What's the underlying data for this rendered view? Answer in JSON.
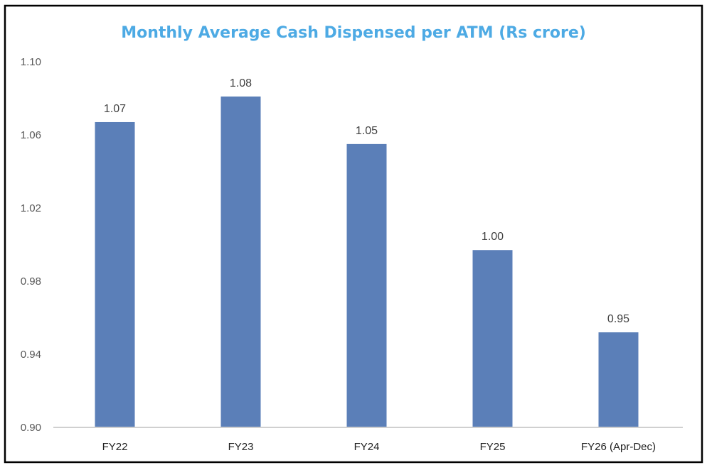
{
  "chart_data": {
    "type": "bar",
    "title": "Monthly Average Cash Dispensed per ATM (Rs crore)",
    "xlabel": "",
    "ylabel": "",
    "categories": [
      "FY22",
      "FY23",
      "FY24",
      "FY25",
      "FY26 (Apr-Dec)"
    ],
    "values": [
      1.067,
      1.081,
      1.055,
      0.997,
      0.952
    ],
    "data_labels": [
      "1.07",
      "1.08",
      "1.05",
      "1.00",
      "0.95"
    ],
    "ylim": [
      0.9,
      1.1
    ],
    "yticks": [
      "0.90",
      "0.94",
      "0.98",
      "1.02",
      "1.06",
      "1.10"
    ],
    "grid": false,
    "bar_color": "#5b7fb8",
    "title_color": "#4daae4"
  }
}
